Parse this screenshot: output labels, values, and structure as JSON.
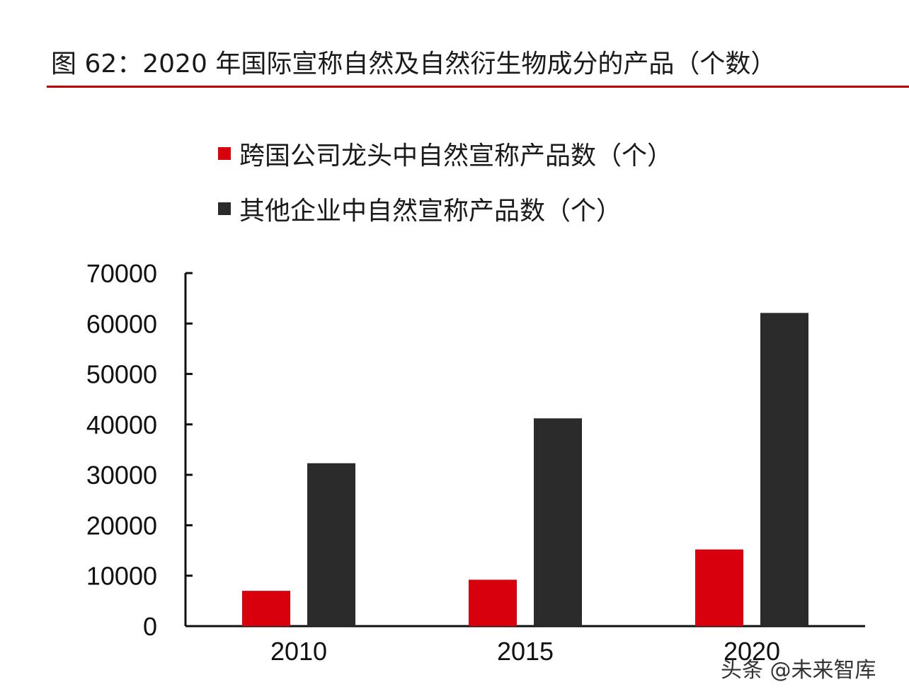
{
  "title": "图 62：2020 年国际宣称自然及自然衍生物成分的产品（个数）",
  "watermark": "头条 @未来智库",
  "colors": {
    "accent_red": "#d9000d",
    "dark_bar": "#2b2b2b",
    "rule": "#c00000"
  },
  "chart_data": {
    "type": "bar",
    "title": "2020 年国际宣称自然及自然衍生物成分的产品（个数）",
    "categories": [
      "2010",
      "2015",
      "2020"
    ],
    "series": [
      {
        "name": "跨国公司龙头中自然宣称产品数（个）",
        "color": "#d9000d",
        "values": [
          7000,
          9200,
          15200
        ]
      },
      {
        "name": "其他企业中自然宣称产品数（个）",
        "color": "#2b2b2b",
        "values": [
          32300,
          41200,
          62100
        ]
      }
    ],
    "y_ticks": [
      "0",
      "10000",
      "20000",
      "30000",
      "40000",
      "50000",
      "60000",
      "70000"
    ],
    "ylim": [
      0,
      70000
    ],
    "xlabel": "",
    "ylabel": "",
    "legend_position": "top-left"
  }
}
